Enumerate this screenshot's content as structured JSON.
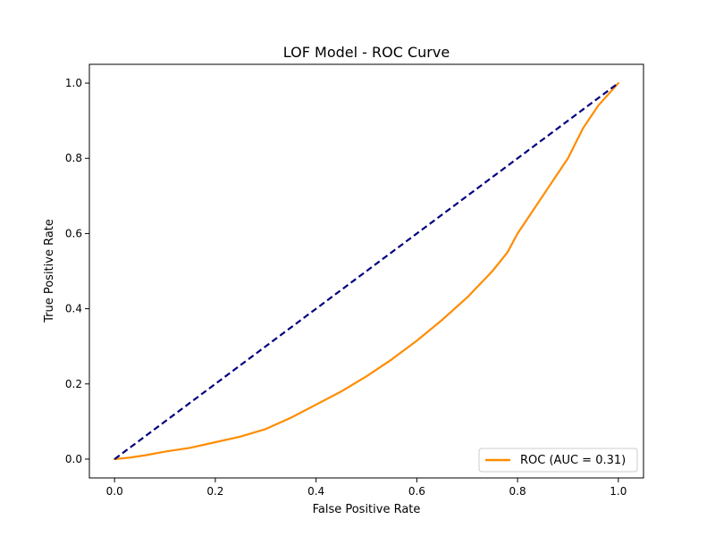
{
  "chart_data": {
    "type": "line",
    "title": "LOF Model - ROC Curve",
    "xlabel": "False Positive Rate",
    "ylabel": "True Positive Rate",
    "xlim": [
      -0.05,
      1.05
    ],
    "ylim": [
      -0.05,
      1.05
    ],
    "x_ticks": [
      "0.0",
      "0.2",
      "0.4",
      "0.6",
      "0.8",
      "1.0"
    ],
    "y_ticks": [
      "0.0",
      "0.2",
      "0.4",
      "0.6",
      "0.8",
      "1.0"
    ],
    "grid": false,
    "legend_position": "lower right",
    "series": [
      {
        "name": "ROC (AUC = 0.31)",
        "color": "#ff8c00",
        "style": "solid",
        "x": [
          0.0,
          0.03,
          0.06,
          0.1,
          0.15,
          0.2,
          0.25,
          0.3,
          0.35,
          0.4,
          0.45,
          0.5,
          0.55,
          0.6,
          0.65,
          0.7,
          0.75,
          0.78,
          0.8,
          0.85,
          0.9,
          0.93,
          0.96,
          1.0
        ],
        "y": [
          0.0,
          0.004,
          0.01,
          0.02,
          0.03,
          0.045,
          0.06,
          0.08,
          0.11,
          0.145,
          0.18,
          0.22,
          0.265,
          0.315,
          0.37,
          0.43,
          0.5,
          0.55,
          0.6,
          0.7,
          0.8,
          0.88,
          0.94,
          1.0
        ]
      },
      {
        "color": "#000080",
        "style": "dashed",
        "x": [
          0.0,
          1.0
        ],
        "y": [
          0.0,
          1.0
        ]
      }
    ]
  }
}
